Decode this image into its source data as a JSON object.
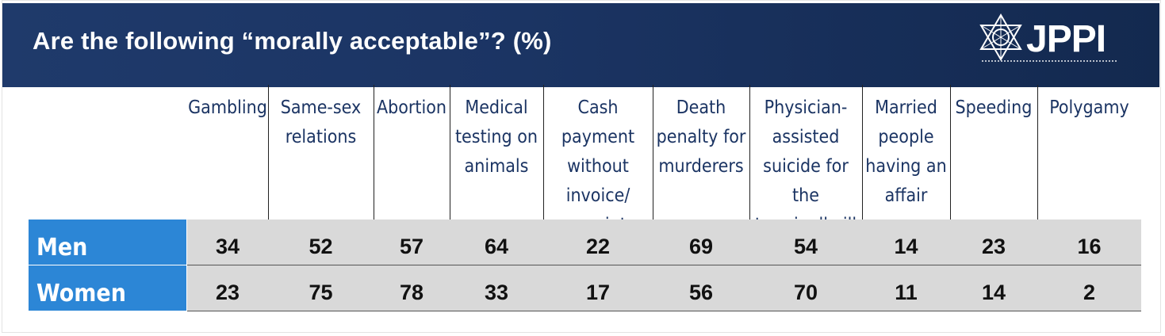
{
  "title": "Are the following “morally acceptable”? (%)",
  "logo": {
    "text": "JPPI",
    "icon": "star-of-david-icon"
  },
  "colors": {
    "header": "#1b3463",
    "row_label": "#2c86d6",
    "row_band": "#d9d9d9"
  },
  "chart_data": {
    "type": "table",
    "columns": [
      "Gambling",
      "Same-sex\nrelations",
      "Abortion",
      "Medical\ntesting on\nanimals",
      "Cash payment\nwithout\ninvoice/\nreceipt",
      "Death\npenalty for\nmurderers",
      "Physician-\nassisted\nsuicide for the\nterminally ill",
      "Married\npeople\nhaving an\naffair",
      "Speeding",
      "Polygamy"
    ],
    "series": [
      {
        "name": "Men",
        "values": [
          34,
          52,
          57,
          64,
          22,
          69,
          54,
          14,
          23,
          16
        ]
      },
      {
        "name": "Women",
        "values": [
          23,
          75,
          78,
          33,
          17,
          56,
          70,
          11,
          14,
          2
        ]
      }
    ]
  }
}
